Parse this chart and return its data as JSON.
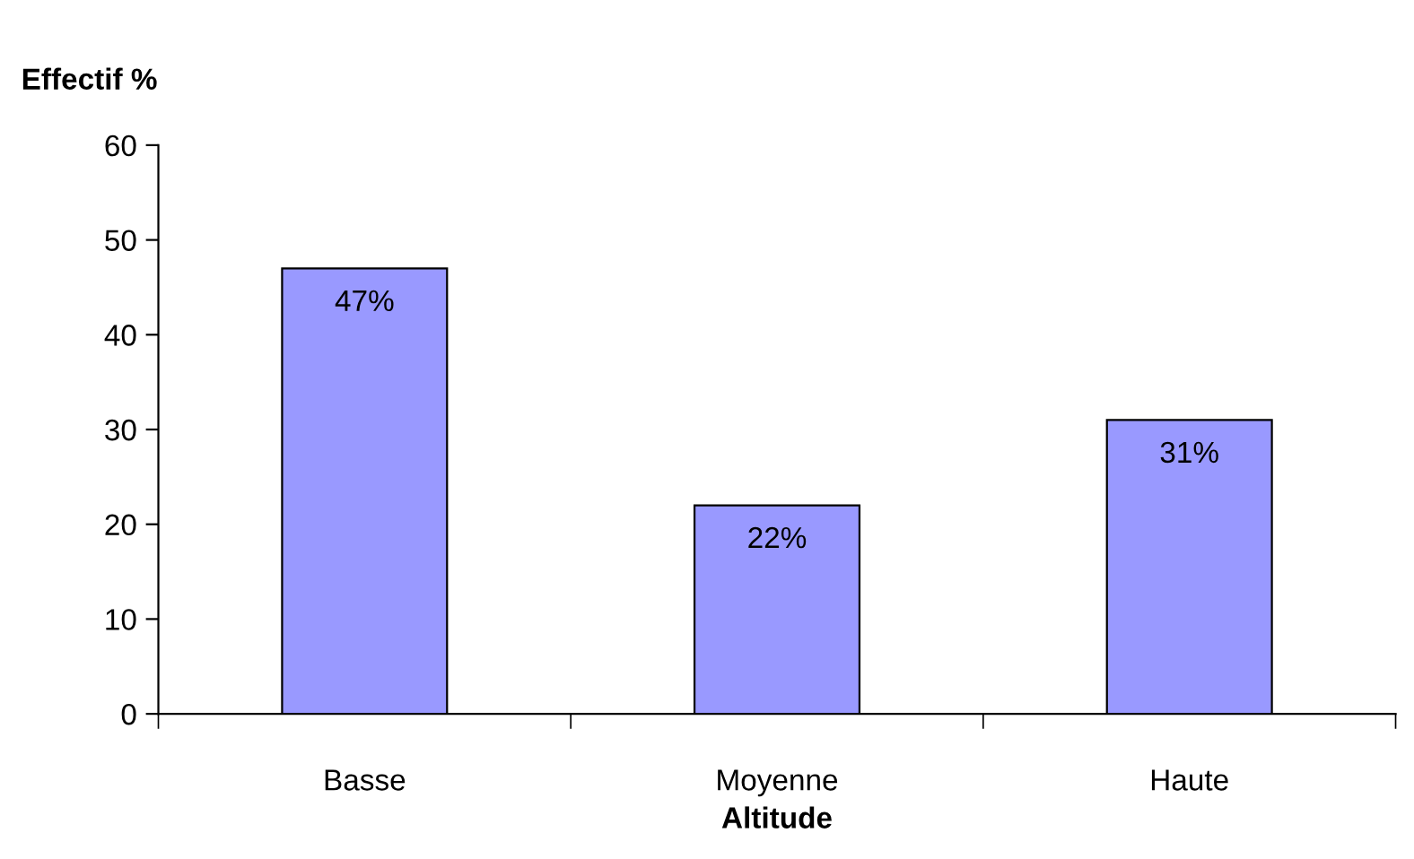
{
  "chart_data": {
    "type": "bar",
    "xlabel": "Altitude",
    "ylabel": "Effectif %",
    "categories": [
      "Basse",
      "Moyenne",
      "Haute"
    ],
    "values": [
      47,
      22,
      31
    ],
    "value_labels": [
      "47%",
      "22%",
      "31%"
    ],
    "color": "#9999ff",
    "ylim": [
      0,
      60
    ],
    "yticks": [
      0,
      10,
      20,
      30,
      40,
      50,
      60
    ],
    "grid": false,
    "legend": false
  }
}
